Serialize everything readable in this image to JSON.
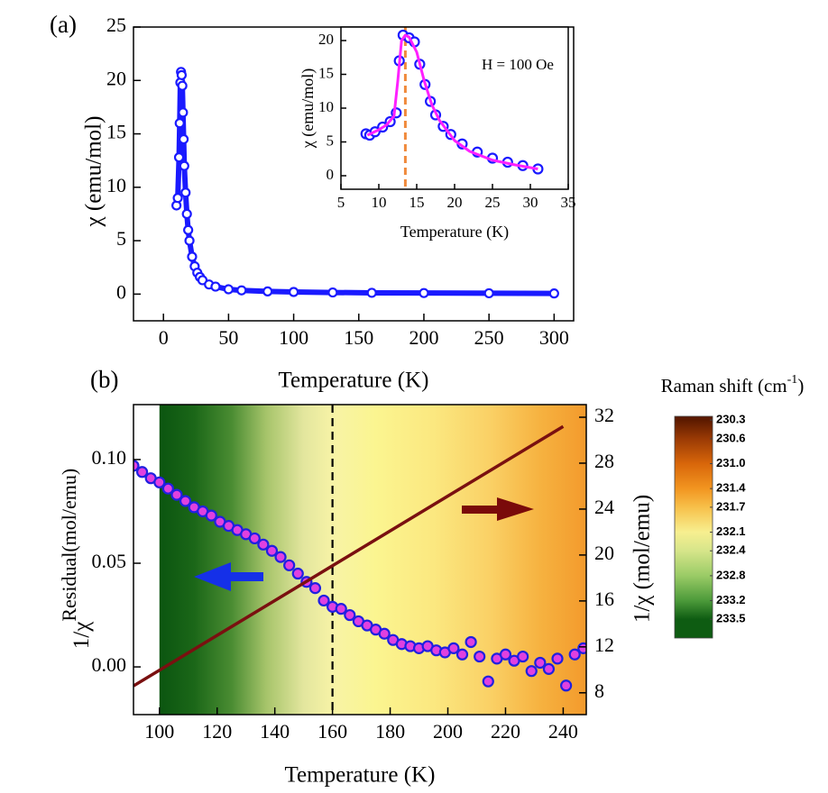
{
  "chart_data": [
    {
      "type": "scatter",
      "panel_label": "(a)",
      "xlabel": "Temperature (K)",
      "ylabel": "χ (emu/mol)",
      "xlim": [
        -23,
        315
      ],
      "ylim": [
        -2.5,
        25
      ],
      "xticks": [
        0,
        50,
        100,
        150,
        200,
        250,
        300
      ],
      "yticks": [
        0,
        5,
        10,
        15,
        20,
        25
      ],
      "series": [
        {
          "color": "#1a1aff",
          "line": true,
          "marker": "circle",
          "x": [
            10,
            11,
            12,
            12.5,
            13,
            13.5,
            14,
            14.5,
            15,
            15.5,
            16,
            17,
            18,
            19,
            20,
            22,
            24,
            26,
            28,
            30,
            35,
            40,
            50,
            60,
            80,
            100,
            130,
            160,
            200,
            250,
            300
          ],
          "values": [
            8.3,
            9,
            12.8,
            16,
            19.8,
            20.8,
            20.5,
            19.5,
            17,
            14.5,
            12,
            9.5,
            7.5,
            6,
            5,
            3.5,
            2.6,
            2,
            1.6,
            1.3,
            0.9,
            0.7,
            0.45,
            0.35,
            0.25,
            0.2,
            0.15,
            0.12,
            0.1,
            0.08,
            0.06
          ]
        }
      ]
    },
    {
      "type": "scatter",
      "xlabel": "Temperature (K)",
      "ylabel": "χ (emu/mol)",
      "annotation": "H = 100 Oe",
      "xlim": [
        5,
        35
      ],
      "ylim": [
        -2,
        22
      ],
      "xticks": [
        5,
        10,
        15,
        20,
        25,
        30,
        35
      ],
      "yticks": [
        0,
        5,
        10,
        15,
        20
      ],
      "vlines": [
        {
          "x": 13.5,
          "color": "#f08a3c",
          "dash": true
        }
      ],
      "series": [
        {
          "color": "#1a1aff",
          "marker": "circle",
          "x": [
            8.3,
            8.8,
            9.5,
            10.5,
            11.5,
            12.3,
            12.7,
            13.2,
            14,
            14.7,
            15.4,
            16.1,
            16.8,
            17.5,
            18.5,
            19.5,
            21,
            23,
            25,
            27,
            29,
            31
          ],
          "values": [
            6.2,
            6,
            6.5,
            7.2,
            8,
            9.3,
            17,
            20.8,
            20.4,
            19.8,
            16.5,
            13.5,
            11,
            9,
            7.3,
            6.1,
            4.7,
            3.5,
            2.6,
            2,
            1.5,
            1
          ]
        },
        {
          "color": "#ff20ff",
          "line": true,
          "x": [
            8.5,
            10,
            11,
            12,
            12.5,
            13,
            13.5,
            14,
            15,
            16,
            17,
            18,
            20,
            22,
            25,
            28,
            31
          ],
          "values": [
            6,
            6.8,
            7.5,
            8.8,
            14,
            20,
            20.8,
            20.5,
            18.3,
            14,
            10.5,
            8.2,
            5.2,
            3.6,
            2.3,
            1.6,
            1
          ]
        }
      ]
    },
    {
      "type": "scatter",
      "panel_label": "(b)",
      "xlabel": "Temperature (K)",
      "ylabel": [
        "1/χ",
        "Residual",
        "(mol/emu)"
      ],
      "y2label": "1/χ (mol/emu)",
      "xlim": [
        91,
        248
      ],
      "ylim": [
        -0.023,
        0.1265
      ],
      "y2lim": [
        6.1,
        33.1
      ],
      "xticks": [
        100,
        120,
        140,
        160,
        180,
        200,
        220,
        240
      ],
      "yticks": [
        {
          "value": 0,
          "label": "0.00"
        },
        {
          "value": 0.05,
          "label": "0.05"
        },
        {
          "value": 0.1,
          "label": "0.10"
        }
      ],
      "y2ticks": [
        8,
        12,
        16,
        20,
        24,
        28,
        32
      ],
      "vlines": [
        {
          "x": 160,
          "color": "#000000",
          "dash": true
        }
      ],
      "background": {
        "x": [
          100,
          112,
          125,
          137,
          150,
          160,
          175,
          195,
          215,
          232,
          248
        ],
        "colors": [
          "#0b5510",
          "#1b6718",
          "#4a8c32",
          "#a6c46a",
          "#e3e69e",
          "#f7f3a6",
          "#fbf590",
          "#fbe880",
          "#fad065",
          "#f6b240",
          "#f39a2c"
        ]
      },
      "series": [
        {
          "color": "#2020e0",
          "fill": "#e040e0",
          "marker": "circle",
          "x": [
            91,
            94,
            97,
            100,
            103,
            106,
            109,
            112,
            115,
            118,
            121,
            124,
            127,
            130,
            133,
            136,
            139,
            142,
            145,
            148,
            151,
            154,
            157,
            160,
            163,
            166,
            169,
            172,
            175,
            178,
            181,
            184,
            187,
            190,
            193,
            196,
            199,
            202,
            205,
            208,
            211,
            214,
            217,
            220,
            223,
            226,
            229,
            232,
            235,
            238,
            241,
            244,
            247
          ],
          "values": [
            0.097,
            0.094,
            0.091,
            0.089,
            0.086,
            0.083,
            0.08,
            0.077,
            0.075,
            0.073,
            0.07,
            0.068,
            0.066,
            0.064,
            0.062,
            0.059,
            0.056,
            0.053,
            0.049,
            0.045,
            0.041,
            0.038,
            0.032,
            0.029,
            0.028,
            0.025,
            0.022,
            0.02,
            0.018,
            0.016,
            0.013,
            0.011,
            0.01,
            0.009,
            0.01,
            0.008,
            0.007,
            0.009,
            0.006,
            0.012,
            0.005,
            -0.007,
            0.004,
            0.006,
            0.003,
            0.005,
            -0.002,
            0.002,
            -0.001,
            0.004,
            -0.009,
            0.006,
            0.009
          ]
        },
        {
          "color": "#7a1010",
          "line": true,
          "axis": "y2",
          "x": [
            91,
            240
          ],
          "values": [
            8.6,
            31.2
          ]
        }
      ],
      "colorbar": {
        "title": [
          "Raman shift (cm",
          "-1",
          ")"
        ],
        "clim": [
          230.24,
          233.8
        ],
        "ticks": [
          230.3,
          230.6,
          {
            "value": 231,
            "label": "231.0"
          },
          231.4,
          231.7,
          232.1,
          232.4,
          232.8,
          233.2,
          233.5
        ],
        "colors": [
          "#5c1a00",
          "#9a3a05",
          "#d8660a",
          "#f29520",
          "#f7c04a",
          "#f7ef90",
          "#d6e58a",
          "#9acb66",
          "#4c9a3a",
          "#0e5c12"
        ]
      }
    }
  ]
}
